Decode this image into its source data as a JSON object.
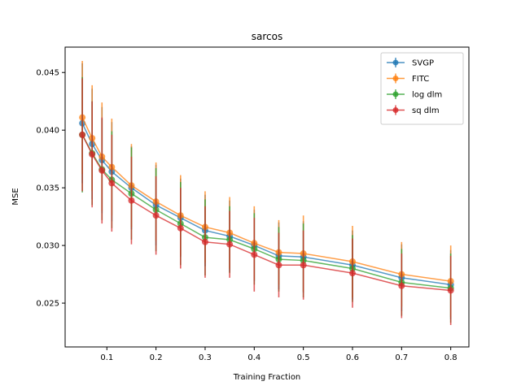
{
  "chart_data": {
    "type": "line",
    "title": "sarcos",
    "xlabel": "Training Fraction",
    "ylabel": "MSE",
    "xlim": [
      0.015,
      0.837
    ],
    "ylim": [
      0.0212,
      0.0472
    ],
    "xticks": [
      0.1,
      0.2,
      0.3,
      0.4,
      0.5,
      0.6,
      0.7,
      0.8
    ],
    "yticks": [
      0.025,
      0.03,
      0.035,
      0.04,
      0.045
    ],
    "grid": false,
    "legend_position": "top-right",
    "x": [
      0.05,
      0.07,
      0.09,
      0.11,
      0.15,
      0.2,
      0.25,
      0.3,
      0.35,
      0.4,
      0.45,
      0.5,
      0.6,
      0.7,
      0.8
    ],
    "series": [
      {
        "name": "SVGP",
        "color": "#1f77b4",
        "values": [
          0.0406,
          0.0388,
          0.0374,
          0.0364,
          0.035,
          0.0335,
          0.0324,
          0.0313,
          0.0308,
          0.03,
          0.0291,
          0.029,
          0.0283,
          0.0272,
          0.0266
        ],
        "errors": [
          0.0052,
          0.0048,
          0.0046,
          0.0043,
          0.0036,
          0.0035,
          0.0034,
          0.0031,
          0.0031,
          0.0031,
          0.0029,
          0.0031,
          0.003,
          0.0029,
          0.003
        ]
      },
      {
        "name": "FITC",
        "color": "#ff7f0e",
        "values": [
          0.0411,
          0.0393,
          0.0377,
          0.0368,
          0.0352,
          0.0338,
          0.0326,
          0.0316,
          0.0311,
          0.0302,
          0.0294,
          0.0293,
          0.0286,
          0.0275,
          0.0269
        ],
        "errors": [
          0.0049,
          0.0046,
          0.0047,
          0.0042,
          0.0036,
          0.0034,
          0.0035,
          0.0031,
          0.0031,
          0.0032,
          0.0028,
          0.0033,
          0.0031,
          0.0028,
          0.0031
        ]
      },
      {
        "name": "log dlm",
        "color": "#2ca02c",
        "values": [
          0.0396,
          0.038,
          0.0366,
          0.0357,
          0.0345,
          0.0331,
          0.0319,
          0.0307,
          0.0305,
          0.0297,
          0.0288,
          0.0287,
          0.028,
          0.0268,
          0.0263
        ],
        "errors": [
          0.005,
          0.0045,
          0.0044,
          0.0042,
          0.004,
          0.0036,
          0.0036,
          0.0033,
          0.0029,
          0.0031,
          0.0028,
          0.0032,
          0.0029,
          0.0029,
          0.003
        ]
      },
      {
        "name": "sq dlm",
        "color": "#d62728",
        "values": [
          0.0396,
          0.0379,
          0.0365,
          0.0354,
          0.0339,
          0.0326,
          0.0315,
          0.0303,
          0.0301,
          0.0292,
          0.0283,
          0.0283,
          0.0276,
          0.0265,
          0.0261
        ],
        "errors": [
          0.0049,
          0.0046,
          0.0046,
          0.0042,
          0.0038,
          0.0034,
          0.0035,
          0.0031,
          0.0029,
          0.0032,
          0.0028,
          0.003,
          0.003,
          0.0028,
          0.003
        ]
      }
    ]
  }
}
